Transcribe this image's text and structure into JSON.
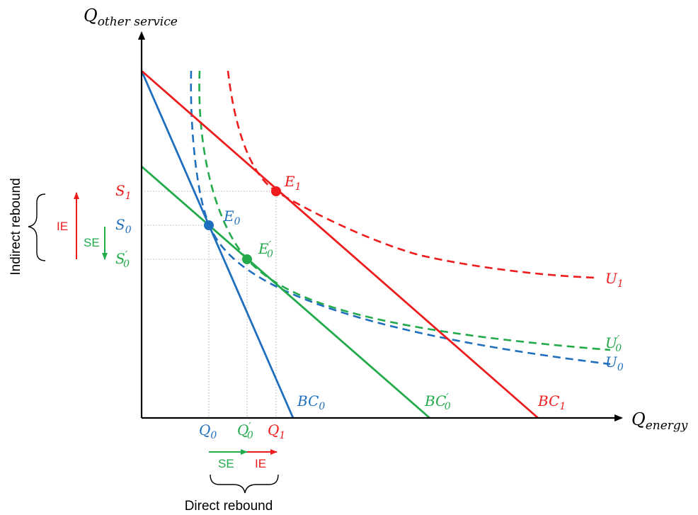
{
  "colors": {
    "blue": "#1f6fbf",
    "green": "#22aa4b",
    "red": "#ee1c1c",
    "axis": "#000000",
    "guide": "#9a9a9a"
  },
  "axes": {
    "y_label": "Q",
    "y_label_sub": "other service",
    "x_label": "Q",
    "x_label_sub": "energy"
  },
  "curves": {
    "bc0": {
      "label": "BC",
      "sub": "0",
      "prime": ""
    },
    "bc0p": {
      "label": "BC",
      "sub": "0",
      "prime": "′"
    },
    "bc1": {
      "label": "BC",
      "sub": "1",
      "prime": ""
    },
    "u0": {
      "label": "U",
      "sub": "0",
      "prime": ""
    },
    "u0p": {
      "label": "U",
      "sub": "0",
      "prime": "′"
    },
    "u1": {
      "label": "U",
      "sub": "1",
      "prime": ""
    }
  },
  "points": {
    "e0": {
      "label": "E",
      "sub": "0",
      "prime": ""
    },
    "e0p": {
      "label": "E",
      "sub": "0",
      "prime": "′"
    },
    "e1": {
      "label": "E",
      "sub": "1",
      "prime": ""
    }
  },
  "ticks": {
    "s1": {
      "label": "S",
      "sub": "1",
      "prime": ""
    },
    "s0": {
      "label": "S",
      "sub": "0",
      "prime": ""
    },
    "s0p": {
      "label": "S",
      "sub": "0",
      "prime": "′"
    },
    "q0": {
      "label": "Q",
      "sub": "0",
      "prime": ""
    },
    "q0p": {
      "label": "Q",
      "sub": "0",
      "prime": "′"
    },
    "q1": {
      "label": "Q",
      "sub": "1",
      "prime": ""
    }
  },
  "effects": {
    "ie": "IE",
    "se": "SE",
    "indirect_rebound": "Indirect rebound",
    "direct_rebound": "Direct rebound"
  }
}
